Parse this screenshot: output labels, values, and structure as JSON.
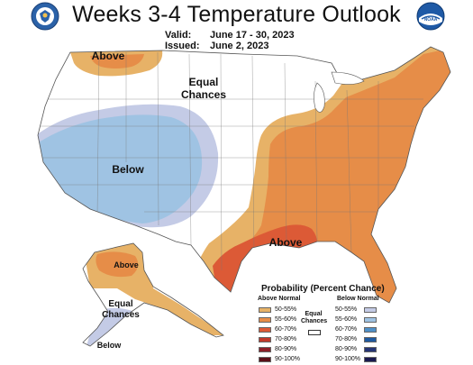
{
  "header": {
    "title": "Weeks 3-4 Temperature Outlook",
    "valid_label": "Valid:",
    "valid_value": "June 17 - 30, 2023",
    "issued_label": "Issued:",
    "issued_value": "June 2, 2023"
  },
  "logos": {
    "left": {
      "icon": "commerce-seal-icon",
      "color": "#2b62a8"
    },
    "right": {
      "icon": "noaa-logo-icon",
      "color": "#1f5aa6",
      "text": "NOAA"
    }
  },
  "map_labels": {
    "above_northwest": "Above",
    "equal_chances_line1": "Equal",
    "equal_chances_line2": "Chances",
    "below_southwest": "Below",
    "above_gulf": "Above",
    "alaska_above": "Above",
    "alaska_equal_line1": "Equal",
    "alaska_equal_line2": "Chances",
    "alaska_below": "Below"
  },
  "legend": {
    "title": "Probability (Percent Chance)",
    "above_title": "Above Normal",
    "below_title": "Below Normal",
    "equal_line1": "Equal",
    "equal_line2": "Chances",
    "above": [
      {
        "label": "50-55%",
        "color": "#e7b267"
      },
      {
        "label": "55-60%",
        "color": "#e68d48"
      },
      {
        "label": "60-70%",
        "color": "#dc5a36"
      },
      {
        "label": "70-80%",
        "color": "#c0392b"
      },
      {
        "label": "80-90%",
        "color": "#8c1f28"
      },
      {
        "label": "90-100%",
        "color": "#5a1018"
      }
    ],
    "below": [
      {
        "label": "50-55%",
        "color": "#c4cbe6"
      },
      {
        "label": "55-60%",
        "color": "#9fc3e3"
      },
      {
        "label": "60-70%",
        "color": "#4f90c8"
      },
      {
        "label": "70-80%",
        "color": "#1f5aa0"
      },
      {
        "label": "80-90%",
        "color": "#263575"
      },
      {
        "label": "90-100%",
        "color": "#1a1a4f"
      }
    ]
  }
}
